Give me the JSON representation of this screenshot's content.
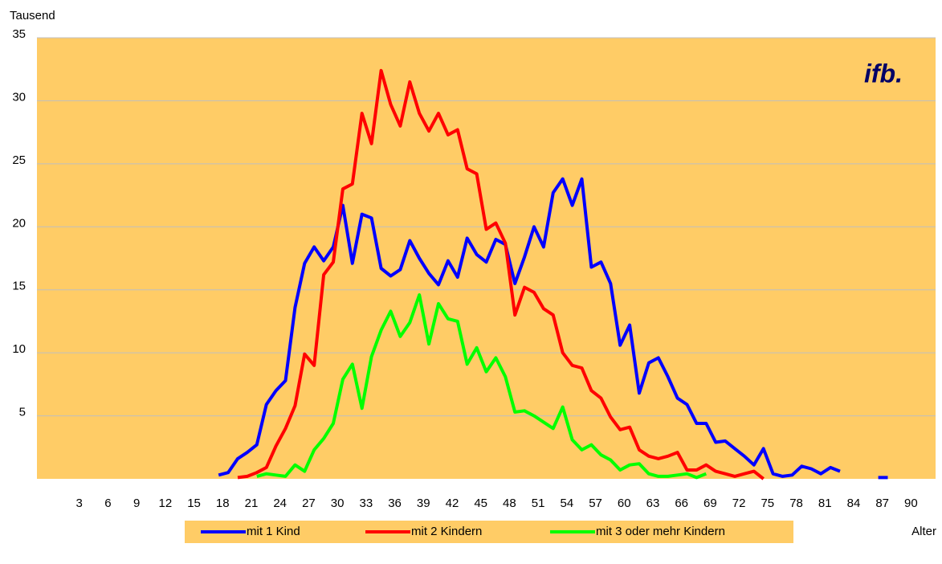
{
  "chart_data": {
    "type": "line",
    "y_label": "Tausend",
    "x_label": "Alter",
    "logo": "ifb.",
    "x": [
      19,
      20,
      21,
      22,
      23,
      24,
      25,
      26,
      27,
      28,
      29,
      30,
      31,
      32,
      33,
      34,
      35,
      36,
      37,
      38,
      39,
      40,
      41,
      42,
      43,
      44,
      45,
      46,
      47,
      48,
      49,
      50,
      51,
      52,
      53,
      54,
      55,
      56,
      57,
      58,
      59,
      60,
      61,
      62,
      63,
      64,
      65,
      66,
      67,
      68,
      69,
      70,
      71,
      72,
      73,
      74,
      75,
      76,
      77,
      78,
      79,
      80,
      81,
      82,
      83,
      84,
      85,
      86,
      87,
      88,
      89
    ],
    "series": [
      {
        "name": "mit 1 Kind",
        "color": "#0000ff",
        "values": [
          0.3,
          0.5,
          1.6,
          2.1,
          2.7,
          5.9,
          7.0,
          7.8,
          13.6,
          17.1,
          18.4,
          17.3,
          18.4,
          21.7,
          17.1,
          21.0,
          20.7,
          16.7,
          16.1,
          16.6,
          18.9,
          17.5,
          16.3,
          15.4,
          17.3,
          16.0,
          19.1,
          17.8,
          17.2,
          19.0,
          18.6,
          15.5,
          17.6,
          20.0,
          18.4,
          22.7,
          23.8,
          21.7,
          23.8,
          16.8,
          17.2,
          15.5,
          10.6,
          12.2,
          6.8,
          9.2,
          9.6,
          8.1,
          6.4,
          5.9,
          4.4,
          4.4,
          2.9,
          3.0,
          2.4,
          1.8,
          1.1,
          2.4,
          0.4,
          0.2,
          0.3,
          1.0,
          0.8,
          0.4,
          0.9,
          0.6,
          null,
          null,
          null,
          0.1,
          0.1
        ]
      },
      {
        "name": "mit 2 Kindern",
        "color": "#ff0000",
        "values": [
          null,
          null,
          0.1,
          0.2,
          0.5,
          0.9,
          2.6,
          4.0,
          5.8,
          9.9,
          9.0,
          16.2,
          17.2,
          23.0,
          23.4,
          29.0,
          26.6,
          32.4,
          29.7,
          28.0,
          31.5,
          29.0,
          27.6,
          29.0,
          27.3,
          27.7,
          24.6,
          24.2,
          19.8,
          20.3,
          18.7,
          13.0,
          15.2,
          14.8,
          13.5,
          13.0,
          10.0,
          9.0,
          8.8,
          7.0,
          6.4,
          4.9,
          3.9,
          4.1,
          2.3,
          1.8,
          1.6,
          1.8,
          2.1,
          0.7,
          0.7,
          1.1,
          0.6,
          0.4,
          0.2,
          0.4,
          0.6,
          0.0,
          null,
          null,
          null,
          null,
          null,
          null,
          null,
          null,
          null,
          null,
          null,
          null,
          null
        ]
      },
      {
        "name": "mit 3 oder mehr Kindern",
        "color": "#00ff00",
        "values": [
          null,
          null,
          null,
          null,
          0.2,
          0.4,
          0.3,
          0.2,
          1.1,
          0.6,
          2.3,
          3.2,
          4.4,
          7.9,
          9.1,
          5.6,
          9.7,
          11.8,
          13.3,
          11.3,
          12.4,
          14.6,
          10.7,
          13.9,
          12.7,
          12.5,
          9.1,
          10.4,
          8.5,
          9.6,
          8.1,
          5.3,
          5.4,
          5.0,
          4.5,
          4.0,
          5.7,
          3.1,
          2.3,
          2.7,
          1.9,
          1.5,
          0.7,
          1.1,
          1.2,
          0.4,
          0.2,
          0.2,
          0.3,
          0.4,
          0.1,
          0.4,
          null,
          null,
          null,
          null,
          null,
          null,
          null,
          null,
          null,
          null,
          null,
          null,
          null,
          null,
          null,
          null,
          null,
          null,
          null
        ]
      }
    ],
    "xlim": [
      0,
      94
    ],
    "xticks": [
      3,
      6,
      9,
      12,
      15,
      18,
      21,
      24,
      27,
      30,
      33,
      36,
      39,
      42,
      45,
      48,
      51,
      54,
      57,
      60,
      63,
      66,
      69,
      72,
      75,
      78,
      81,
      84,
      87,
      90
    ],
    "ylim": [
      0,
      35
    ],
    "yticks": [
      5,
      10,
      15,
      20,
      25,
      30,
      35
    ],
    "grid": true,
    "background": "#ffcc66"
  }
}
